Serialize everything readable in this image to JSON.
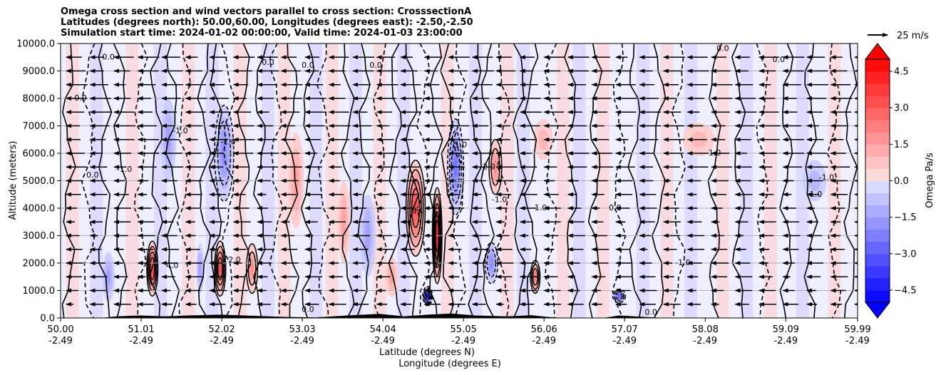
{
  "chart_data": {
    "type": "cross-section",
    "title_lines": [
      "Omega cross section and wind vectors parallel to cross section: CrosssectionA",
      "Latitudes (degrees north): 50.00,60.00, Longitudes (degrees east): -2.50,-2.50",
      "Simulation start time: 2024-01-02 00:00:00, Valid time: 2024-01-03 23:00:00"
    ],
    "xlabel_line1": "Latitude (degrees N)",
    "xlabel_line2": "Longitude (degrees E)",
    "ylabel": "Altitude (meters)",
    "xlim": [
      50.0,
      59.99
    ],
    "ylim": [
      0.0,
      10000.0
    ],
    "x_ticks": [
      {
        "lat": 50.0,
        "lat_label": "50.00",
        "lon_label": "-2.49"
      },
      {
        "lat": 51.01,
        "lat_label": "51.01",
        "lon_label": "-2.49"
      },
      {
        "lat": 52.02,
        "lat_label": "52.02",
        "lon_label": "-2.49"
      },
      {
        "lat": 53.03,
        "lat_label": "53.03",
        "lon_label": "-2.49"
      },
      {
        "lat": 54.04,
        "lat_label": "54.04",
        "lon_label": "-2.49"
      },
      {
        "lat": 55.05,
        "lat_label": "55.05",
        "lon_label": "-2.49"
      },
      {
        "lat": 56.06,
        "lat_label": "56.06",
        "lon_label": "-2.49"
      },
      {
        "lat": 57.07,
        "lat_label": "57.07",
        "lon_label": "-2.49"
      },
      {
        "lat": 58.08,
        "lat_label": "58.08",
        "lon_label": "-2.49"
      },
      {
        "lat": 59.09,
        "lat_label": "59.09",
        "lon_label": "-2.49"
      },
      {
        "lat": 59.99,
        "lat_label": "59.99",
        "lon_label": "-2.49"
      }
    ],
    "y_ticks": [
      {
        "value": 0,
        "label": "0.0"
      },
      {
        "value": 1000,
        "label": "1000.0"
      },
      {
        "value": 2000,
        "label": "2000.0"
      },
      {
        "value": 3000,
        "label": "3000.0"
      },
      {
        "value": 4000,
        "label": "4000.0"
      },
      {
        "value": 5000,
        "label": "5000.0"
      },
      {
        "value": 6000,
        "label": "6000.0"
      },
      {
        "value": 7000,
        "label": "7000.0"
      },
      {
        "value": 8000,
        "label": "8000.0"
      },
      {
        "value": 9000,
        "label": "9000.0"
      },
      {
        "value": 10000,
        "label": "10000.0"
      }
    ],
    "colorbar": {
      "label": "Omega Pa/s",
      "vmin": -5.0,
      "vmax": 5.0,
      "step": 0.5,
      "ticks": [
        {
          "value": 4.5,
          "label": "4.5"
        },
        {
          "value": 3.0,
          "label": "3.0"
        },
        {
          "value": 1.5,
          "label": "1.5"
        },
        {
          "value": 0.0,
          "label": "0.0"
        },
        {
          "value": -1.5,
          "label": "−1.5"
        },
        {
          "value": -3.0,
          "label": "−3.0"
        },
        {
          "value": -4.5,
          "label": "−4.5"
        }
      ]
    },
    "quiver_key_label": "25 m/s",
    "quiver_key_speed": 25,
    "wind_levels_m": [
      500,
      1000,
      1500,
      2000,
      2500,
      3000,
      3500,
      4000,
      4500,
      5000,
      5500,
      6000,
      6500,
      7000,
      7500,
      8000,
      8500,
      9000,
      9500
    ],
    "omega_features": [
      {
        "lat": 50.6,
        "alt": 1500,
        "width": 0.08,
        "height": 1800,
        "value": -1.5
      },
      {
        "lat": 51.15,
        "alt": 1800,
        "width": 0.07,
        "height": 2000,
        "value": 4.0
      },
      {
        "lat": 51.35,
        "alt": 6500,
        "width": 0.1,
        "height": 3000,
        "value": -1.5
      },
      {
        "lat": 51.75,
        "alt": 1800,
        "width": 0.05,
        "height": 1800,
        "value": -1.5
      },
      {
        "lat": 52.0,
        "alt": 1800,
        "width": 0.07,
        "height": 2000,
        "value": 3.5
      },
      {
        "lat": 52.05,
        "alt": 6000,
        "width": 0.12,
        "height": 3500,
        "value": -2.0
      },
      {
        "lat": 52.4,
        "alt": 1800,
        "width": 0.07,
        "height": 1800,
        "value": 2.0
      },
      {
        "lat": 52.95,
        "alt": 5000,
        "width": 0.1,
        "height": 3500,
        "value": 1.5
      },
      {
        "lat": 53.55,
        "alt": 3500,
        "width": 0.08,
        "height": 3000,
        "value": 1.5
      },
      {
        "lat": 53.85,
        "alt": 3000,
        "width": 0.1,
        "height": 3000,
        "value": -1.5
      },
      {
        "lat": 54.15,
        "alt": 1500,
        "width": 0.08,
        "height": 1500,
        "value": 1.5
      },
      {
        "lat": 54.45,
        "alt": 4000,
        "width": 0.12,
        "height": 3500,
        "value": 3.5
      },
      {
        "lat": 54.6,
        "alt": 800,
        "width": 0.06,
        "height": 700,
        "value": -5.0
      },
      {
        "lat": 54.72,
        "alt": 3000,
        "width": 0.06,
        "height": 3500,
        "value": 4.5
      },
      {
        "lat": 54.95,
        "alt": 5500,
        "width": 0.1,
        "height": 3500,
        "value": -2.5
      },
      {
        "lat": 55.45,
        "alt": 5500,
        "width": 0.08,
        "height": 2000,
        "value": 2.0
      },
      {
        "lat": 55.4,
        "alt": 2000,
        "width": 0.08,
        "height": 1500,
        "value": -2.0
      },
      {
        "lat": 55.95,
        "alt": 1500,
        "width": 0.06,
        "height": 1200,
        "value": 2.5
      },
      {
        "lat": 56.05,
        "alt": 6500,
        "width": 0.12,
        "height": 1500,
        "value": 1.0
      },
      {
        "lat": 57.0,
        "alt": 800,
        "width": 0.08,
        "height": 500,
        "value": -3.0
      },
      {
        "lat": 58.0,
        "alt": 6500,
        "width": 0.2,
        "height": 1200,
        "value": 0.7
      },
      {
        "lat": 59.45,
        "alt": 5000,
        "width": 0.15,
        "height": 1500,
        "value": -1.0
      }
    ],
    "contour_labels": [
      {
        "lat": 50.6,
        "alt": 9500,
        "label": "0.0"
      },
      {
        "lat": 50.25,
        "alt": 8000,
        "label": "0.0"
      },
      {
        "lat": 50.4,
        "alt": 5200,
        "label": "0.0"
      },
      {
        "lat": 50.8,
        "alt": 5400,
        "label": "-1.0"
      },
      {
        "lat": 51.5,
        "alt": 6800,
        "label": "-1.0"
      },
      {
        "lat": 51.4,
        "alt": 1900,
        "label": "4.0"
      },
      {
        "lat": 52.18,
        "alt": 2100,
        "label": "2.0"
      },
      {
        "lat": 52.1,
        "alt": 6400,
        "label": "-1.0"
      },
      {
        "lat": 52.6,
        "alt": 9300,
        "label": "0.0"
      },
      {
        "lat": 53.1,
        "alt": 9200,
        "label": "0.0"
      },
      {
        "lat": 53.95,
        "alt": 9200,
        "label": "0.0"
      },
      {
        "lat": 54.48,
        "alt": 3900,
        "label": "3.0"
      },
      {
        "lat": 55.0,
        "alt": 6300,
        "label": "-1.0"
      },
      {
        "lat": 55.37,
        "alt": 5500,
        "label": "2.0"
      },
      {
        "lat": 55.5,
        "alt": 4300,
        "label": "-1.0"
      },
      {
        "lat": 56.0,
        "alt": 4000,
        "label": "-1.0"
      },
      {
        "lat": 56.95,
        "alt": 4000,
        "label": "0.0"
      },
      {
        "lat": 57.8,
        "alt": 2000,
        "label": "-1.0"
      },
      {
        "lat": 58.2,
        "alt": 6000,
        "label": "1.0"
      },
      {
        "lat": 58.3,
        "alt": 9800,
        "label": "0.0"
      },
      {
        "lat": 59.0,
        "alt": 9400,
        "label": "0.0"
      },
      {
        "lat": 59.45,
        "alt": 4500,
        "label": "-1.0"
      },
      {
        "lat": 59.6,
        "alt": 5100,
        "label": "-1.0"
      },
      {
        "lat": 57.4,
        "alt": 200,
        "label": "0.0"
      },
      {
        "lat": 53.1,
        "alt": 300,
        "label": "0.0"
      }
    ]
  }
}
